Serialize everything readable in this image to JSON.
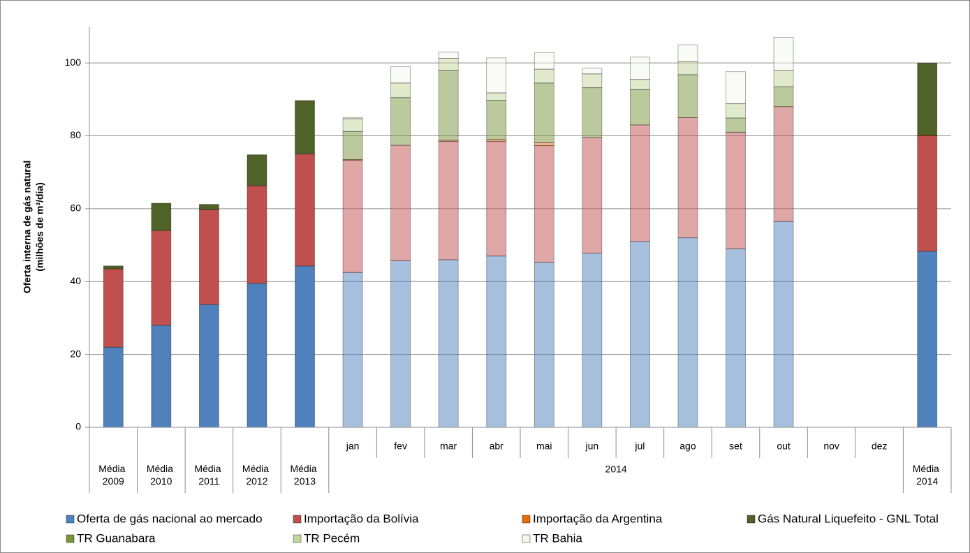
{
  "chart_data": {
    "type": "bar",
    "stacked": true,
    "y_label": [
      "Oferta interna de gás natural",
      "(milhões de m³/dia)"
    ],
    "categories": [
      "Média 2009",
      "Média 2010",
      "Média 2011",
      "Média 2012",
      "Média 2013",
      "jan",
      "fev",
      "mar",
      "abr",
      "mai",
      "jun",
      "jul",
      "ago",
      "set",
      "out",
      "nov",
      "dez",
      "Média 2014"
    ],
    "category_groups": [
      {
        "label": "2014",
        "from": "jan",
        "to": "dez"
      }
    ],
    "ylim": [
      0,
      110
    ],
    "yticks": [
      0,
      20,
      40,
      60,
      80,
      100
    ],
    "grid": true,
    "series": [
      {
        "name": "Oferta de gás nacional ao mercado",
        "color": "#4f81bd",
        "values": [
          22,
          28,
          33.7,
          39.5,
          44.3,
          42.5,
          45.7,
          46,
          47,
          45.3,
          47.8,
          51,
          52,
          49,
          56.5,
          null,
          null,
          48.3
        ]
      },
      {
        "name": "Importação da Bolívia",
        "color": "#c0504d",
        "values": [
          21.5,
          26,
          26,
          26.8,
          30.7,
          30.8,
          31.7,
          32.5,
          31.5,
          32,
          31.7,
          32,
          33,
          32,
          31.5,
          null,
          null,
          31.7
        ]
      },
      {
        "name": "Importação da Argentina",
        "color": "#e36c0a",
        "values": [
          null,
          null,
          null,
          null,
          null,
          0.2,
          null,
          0.3,
          0.5,
          0.8,
          null,
          null,
          null,
          null,
          null,
          null,
          null,
          0.2
        ]
      },
      {
        "name": "Gás Natural Liquefeito - GNL Total",
        "color": "#4f6228",
        "values": [
          0.8,
          7.5,
          1.5,
          8.5,
          14.7,
          null,
          null,
          null,
          null,
          null,
          null,
          null,
          null,
          null,
          null,
          null,
          null,
          19.8
        ]
      },
      {
        "name": "TR Guanabara",
        "color": "#77933c",
        "values": [
          null,
          null,
          null,
          null,
          null,
          7.7,
          13.1,
          19.2,
          10.8,
          16.4,
          13.7,
          9.7,
          11.8,
          3.9,
          5.5,
          null,
          null,
          null
        ]
      },
      {
        "name": "TR Pecém",
        "color": "#c3d69b",
        "values": [
          null,
          null,
          null,
          null,
          null,
          3.5,
          4,
          3.3,
          2,
          3.8,
          3.8,
          2.8,
          3.5,
          3.9,
          4.5,
          null,
          null,
          null
        ]
      },
      {
        "name": "TR Bahia",
        "color": "#f4f8ec",
        "values": [
          null,
          null,
          null,
          null,
          null,
          0.3,
          4.5,
          1.7,
          9.6,
          4.5,
          1.6,
          6.1,
          4.7,
          8.8,
          9,
          null,
          null,
          null
        ]
      }
    ]
  }
}
